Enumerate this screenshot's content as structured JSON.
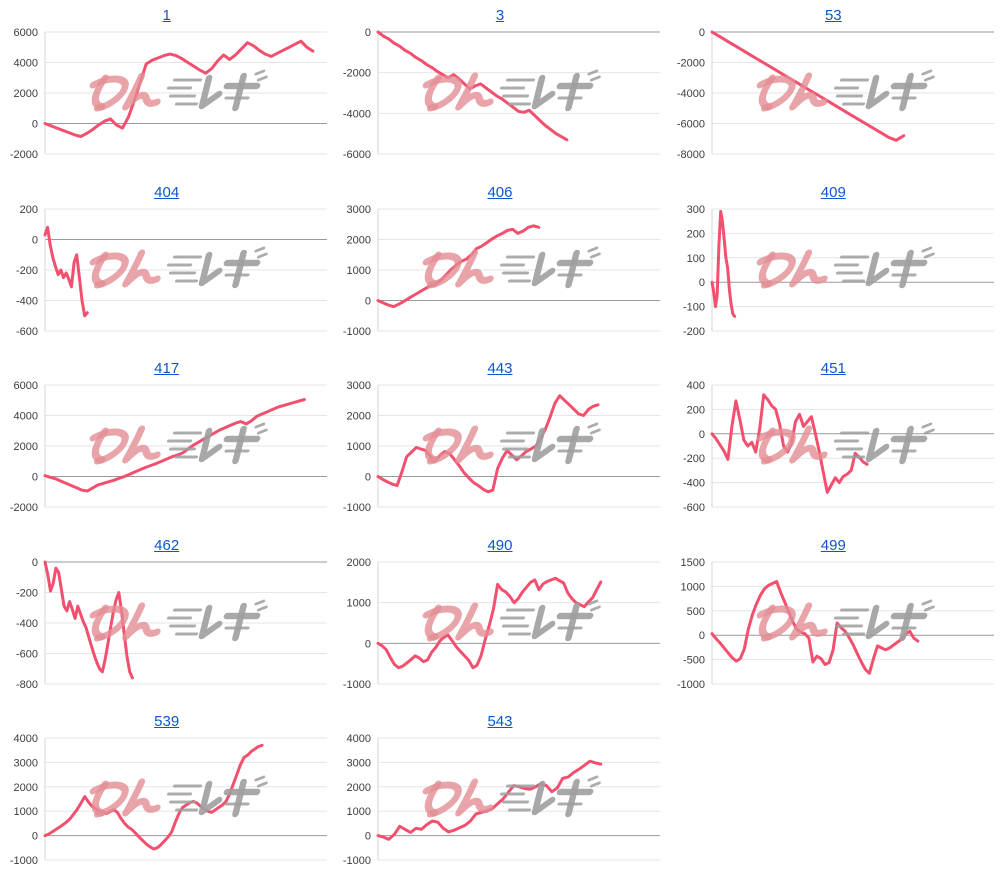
{
  "page": {
    "background": "#ffffff"
  },
  "style": {
    "line_color": "#f2506e",
    "grid_color": "#e5e5e5",
    "zero_line_color": "#9a9a9a",
    "axis_line_color": "#d6d6d6",
    "label_color": "#3d3d3d",
    "title_color": "#1155cc",
    "watermark_pink": "#e28d94",
    "watermark_gray": "#9e9e9e"
  },
  "watermark": {
    "part1": "みん",
    "part2": "レポ"
  },
  "chart_data": [
    {
      "type": "line",
      "title": "1",
      "ylim": [
        -2000,
        6000
      ],
      "yticks": [
        6000,
        4000,
        2000,
        0,
        -2000
      ],
      "x_end_fraction": 0.95,
      "values": [
        0,
        -150,
        -300,
        -450,
        -600,
        -750,
        -850,
        -650,
        -400,
        -100,
        150,
        300,
        -100,
        -300,
        400,
        1500,
        2700,
        3900,
        4150,
        4300,
        4450,
        4550,
        4450,
        4250,
        4000,
        3750,
        3500,
        3300,
        3600,
        4100,
        4500,
        4200,
        4500,
        4900,
        5300,
        5100,
        4800,
        4550,
        4400,
        4600,
        4800,
        5000,
        5200,
        5400,
        5000,
        4750
      ]
    },
    {
      "type": "line",
      "title": "3",
      "ylim": [
        -6000,
        0
      ],
      "yticks": [
        0,
        -2000,
        -4000,
        -6000
      ],
      "x_end_fraction": 0.67,
      "values": [
        0,
        -200,
        -350,
        -550,
        -700,
        -900,
        -1050,
        -1250,
        -1400,
        -1600,
        -1750,
        -1950,
        -2100,
        -2250,
        -2100,
        -2300,
        -2550,
        -2800,
        -2650,
        -2550,
        -2750,
        -2950,
        -3150,
        -3300,
        -3500,
        -3700,
        -3900,
        -3950,
        -3850,
        -4100,
        -4350,
        -4600,
        -4800,
        -5000,
        -5150,
        -5300
      ]
    },
    {
      "type": "line",
      "title": "53",
      "ylim": [
        -8000,
        0
      ],
      "yticks": [
        0,
        -2000,
        -4000,
        -6000,
        -8000
      ],
      "x_end_fraction": 0.68,
      "values": [
        0,
        -300,
        -600,
        -900,
        -1200,
        -1500,
        -1800,
        -2100,
        -2400,
        -2700,
        -3000,
        -3300,
        -3600,
        -3900,
        -4200,
        -4500,
        -4800,
        -5100,
        -5400,
        -5700,
        -6000,
        -6300,
        -6600,
        -6900,
        -7100,
        -6800
      ]
    },
    {
      "type": "line",
      "title": "404",
      "ylim": [
        -600,
        200
      ],
      "yticks": [
        200,
        0,
        -200,
        -400,
        -600
      ],
      "x_end_fraction": 0.15,
      "values": [
        30,
        80,
        -40,
        -120,
        -180,
        -230,
        -200,
        -250,
        -220,
        -260,
        -310,
        -150,
        -100,
        -250,
        -400,
        -500,
        -480
      ]
    },
    {
      "type": "line",
      "title": "406",
      "ylim": [
        -1000,
        3000
      ],
      "yticks": [
        3000,
        2000,
        1000,
        0,
        -1000
      ],
      "x_end_fraction": 0.57,
      "values": [
        0,
        -80,
        -150,
        -200,
        -120,
        -30,
        80,
        180,
        280,
        380,
        480,
        520,
        650,
        820,
        1000,
        1150,
        1280,
        1350,
        1500,
        1700,
        1780,
        1900,
        2020,
        2120,
        2200,
        2300,
        2330,
        2200,
        2280,
        2400,
        2450,
        2400
      ]
    },
    {
      "type": "line",
      "title": "409",
      "ylim": [
        -200,
        300
      ],
      "yticks": [
        300,
        200,
        100,
        0,
        -100,
        -200
      ],
      "x_end_fraction": 0.08,
      "values": [
        0,
        -40,
        -100,
        -50,
        150,
        290,
        250,
        180,
        100,
        60,
        -30,
        -90,
        -130,
        -140
      ]
    },
    {
      "type": "line",
      "title": "417",
      "ylim": [
        -2000,
        6000
      ],
      "yticks": [
        6000,
        4000,
        2000,
        0,
        -2000
      ],
      "x_end_fraction": 0.92,
      "values": [
        50,
        -50,
        -150,
        -300,
        -450,
        -600,
        -750,
        -900,
        -950,
        -750,
        -550,
        -450,
        -350,
        -250,
        -120,
        0,
        150,
        300,
        450,
        600,
        720,
        850,
        1000,
        1150,
        1300,
        1400,
        1550,
        1800,
        2050,
        2250,
        2450,
        2650,
        2850,
        3050,
        3200,
        3350,
        3500,
        3600,
        3450,
        3650,
        3950,
        4100,
        4250,
        4400,
        4550,
        4650,
        4750,
        4850,
        4950,
        5050
      ]
    },
    {
      "type": "line",
      "title": "443",
      "ylim": [
        -1000,
        3000
      ],
      "yticks": [
        3000,
        2000,
        1000,
        0,
        -1000
      ],
      "x_end_fraction": 0.78,
      "values": [
        0,
        -100,
        -180,
        -250,
        -300,
        150,
        650,
        800,
        950,
        900,
        850,
        650,
        500,
        700,
        820,
        750,
        550,
        350,
        120,
        -50,
        -200,
        -300,
        -420,
        -500,
        -450,
        250,
        600,
        850,
        700,
        550,
        680,
        820,
        900,
        1000,
        1250,
        1550,
        1950,
        2400,
        2650,
        2500,
        2350,
        2200,
        2050,
        2000,
        2200,
        2300,
        2350
      ]
    },
    {
      "type": "line",
      "title": "451",
      "ylim": [
        -600,
        400
      ],
      "yticks": [
        400,
        200,
        0,
        -200,
        -400,
        -600
      ],
      "x_end_fraction": 0.55,
      "values": [
        0,
        -40,
        -90,
        -140,
        -210,
        60,
        270,
        120,
        -50,
        -100,
        -70,
        -150,
        40,
        320,
        280,
        230,
        200,
        80,
        -100,
        -150,
        -80,
        100,
        160,
        60,
        100,
        140,
        0,
        -150,
        -320,
        -480,
        -420,
        -360,
        -400,
        -350,
        -330,
        -300,
        -160,
        -190,
        -230,
        -250
      ]
    },
    {
      "type": "line",
      "title": "462",
      "ylim": [
        -800,
        0
      ],
      "yticks": [
        0,
        -200,
        -400,
        -600,
        -800
      ],
      "x_end_fraction": 0.31,
      "values": [
        0,
        -80,
        -190,
        -140,
        -40,
        -70,
        -180,
        -290,
        -320,
        -260,
        -310,
        -370,
        -290,
        -340,
        -390,
        -430,
        -490,
        -550,
        -610,
        -660,
        -700,
        -720,
        -640,
        -540,
        -430,
        -330,
        -250,
        -200,
        -320,
        -470,
        -620,
        -720,
        -760
      ]
    },
    {
      "type": "line",
      "title": "490",
      "ylim": [
        -1000,
        2000
      ],
      "yticks": [
        2000,
        1000,
        0,
        -1000
      ],
      "x_end_fraction": 0.79,
      "values": [
        0,
        -60,
        -160,
        -350,
        -520,
        -600,
        -560,
        -480,
        -400,
        -310,
        -360,
        -450,
        -410,
        -220,
        -100,
        60,
        150,
        200,
        60,
        -90,
        -200,
        -310,
        -420,
        -600,
        -540,
        -300,
        100,
        450,
        850,
        1450,
        1320,
        1260,
        1150,
        1000,
        1100,
        1260,
        1380,
        1500,
        1560,
        1320,
        1460,
        1520,
        1560,
        1600,
        1540,
        1480,
        1240,
        1100,
        1000,
        950,
        900,
        1020,
        1120,
        1320,
        1510
      ]
    },
    {
      "type": "line",
      "title": "499",
      "ylim": [
        -1000,
        1500
      ],
      "yticks": [
        1500,
        1000,
        500,
        0,
        -500,
        -1000
      ],
      "x_end_fraction": 0.73,
      "values": [
        30,
        -70,
        -160,
        -260,
        -360,
        -460,
        -530,
        -480,
        -280,
        120,
        420,
        640,
        820,
        950,
        1020,
        1060,
        1100,
        880,
        680,
        480,
        280,
        120,
        60,
        30,
        -60,
        -550,
        -430,
        -480,
        -600,
        -560,
        -300,
        250,
        150,
        80,
        -50,
        -200,
        -380,
        -550,
        -700,
        -780,
        -480,
        -220,
        -260,
        -300,
        -260,
        -200,
        -140,
        -80,
        30,
        80,
        -60,
        -120
      ]
    },
    {
      "type": "line",
      "title": "539",
      "ylim": [
        -1000,
        4000
      ],
      "yticks": [
        4000,
        3000,
        2000,
        1000,
        0,
        -1000
      ],
      "x_end_fraction": 0.77,
      "values": [
        0,
        60,
        150,
        250,
        350,
        450,
        560,
        700,
        900,
        1100,
        1350,
        1600,
        1380,
        1200,
        1100,
        1000,
        950,
        900,
        980,
        1060,
        950,
        700,
        500,
        350,
        250,
        100,
        -60,
        -200,
        -350,
        -460,
        -550,
        -500,
        -380,
        -220,
        -60,
        150,
        550,
        900,
        1150,
        1250,
        1350,
        1400,
        1330,
        1200,
        1100,
        1000,
        950,
        1050,
        1150,
        1250,
        1400,
        1700,
        2100,
        2500,
        2900,
        3200,
        3300,
        3450,
        3550,
        3650,
        3700
      ]
    },
    {
      "type": "line",
      "title": "543",
      "ylim": [
        -1000,
        4000
      ],
      "yticks": [
        4000,
        3000,
        2000,
        1000,
        0,
        -1000
      ],
      "x_end_fraction": 0.79,
      "values": [
        0,
        -60,
        -150,
        50,
        380,
        250,
        130,
        300,
        260,
        450,
        600,
        550,
        300,
        150,
        220,
        320,
        420,
        600,
        880,
        950,
        1000,
        1100,
        1300,
        1500,
        1780,
        2050,
        2000,
        1930,
        1900,
        2000,
        2130,
        2050,
        1800,
        1950,
        2350,
        2400,
        2580,
        2720,
        2880,
        3050,
        2980,
        2930
      ]
    }
  ]
}
